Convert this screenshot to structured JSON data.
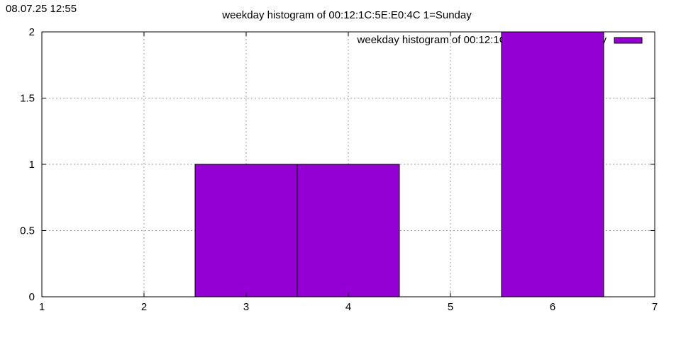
{
  "timestamp": "08.07.25 12:55",
  "chart_data": {
    "type": "bar",
    "title": "weekday histogram of 00:12:1C:5E:E0:4C 1=Sunday",
    "xlabel": "",
    "ylabel": "",
    "xlim": [
      1,
      7
    ],
    "ylim": [
      0,
      2
    ],
    "xticks": [
      "1",
      "2",
      "3",
      "4",
      "5",
      "6",
      "7"
    ],
    "yticks": [
      "0",
      "0.5",
      "1",
      "1.5",
      "2"
    ],
    "grid": true,
    "legend_position": "top-right",
    "bar_color": "#9400d3",
    "series": [
      {
        "name": "weekday histogram of 00:12:1C:5E:E0:4C 1=Sunday",
        "x": [
          3,
          4,
          6
        ],
        "values": [
          1,
          1,
          2
        ]
      }
    ]
  }
}
